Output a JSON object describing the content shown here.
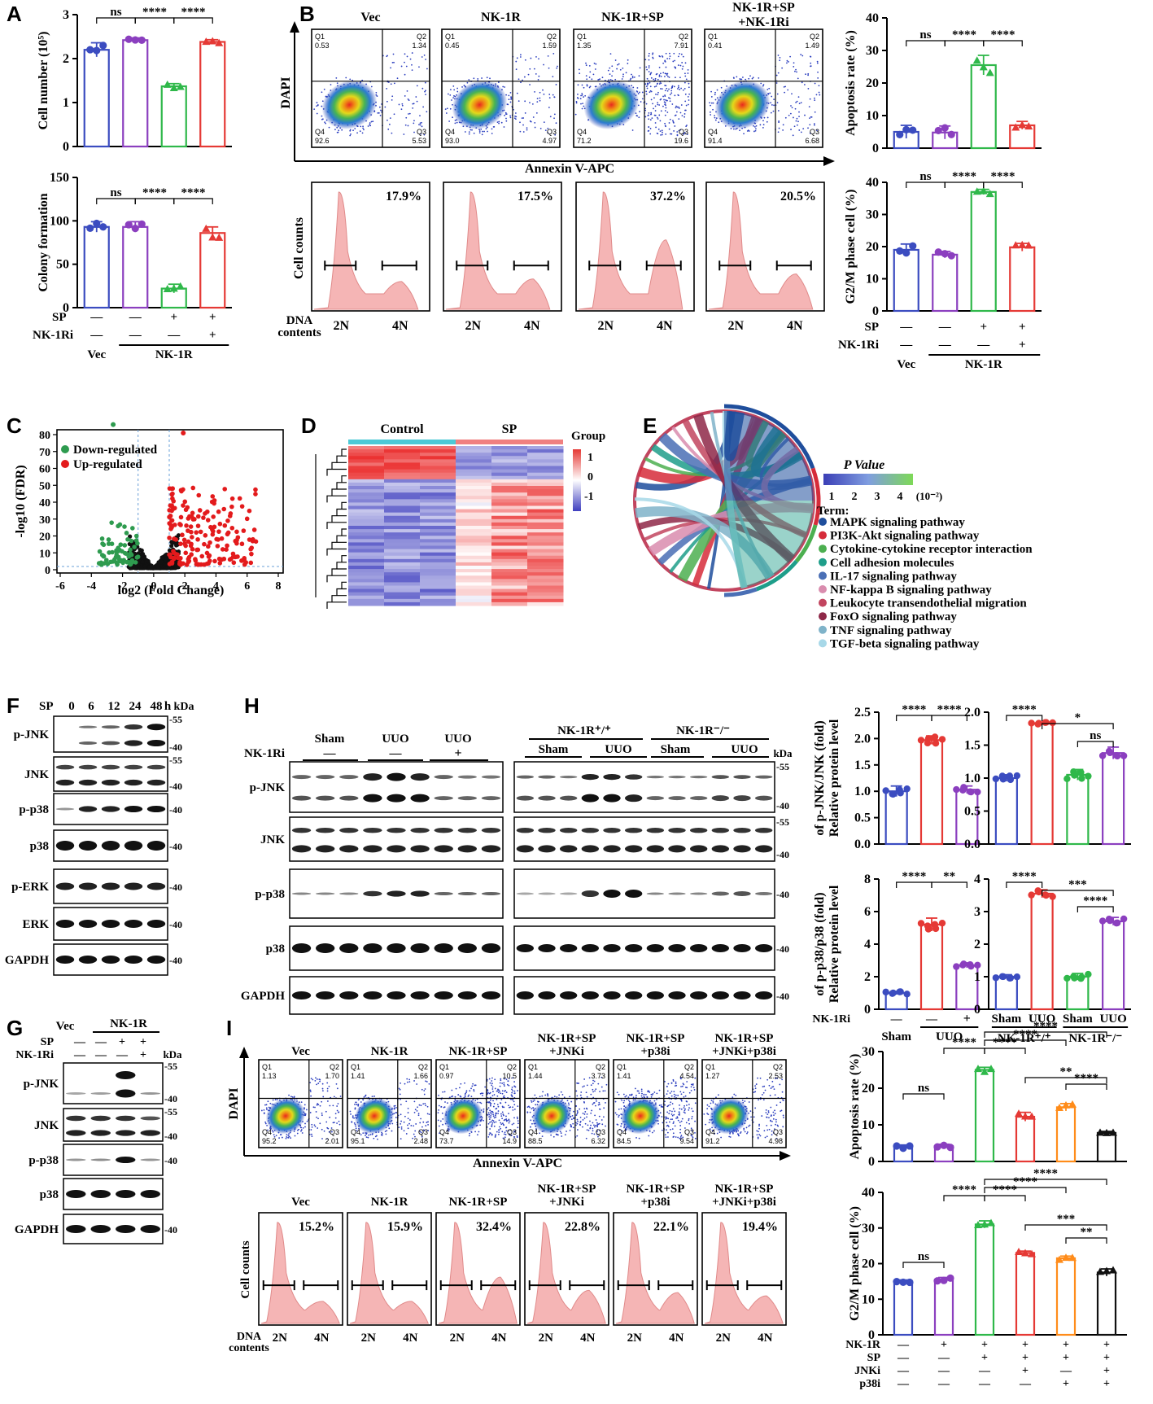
{
  "panels": {
    "A": "A",
    "B": "B",
    "C": "C",
    "D": "D",
    "E": "E",
    "F": "F",
    "G": "G",
    "H": "H",
    "I": "I"
  },
  "colors": {
    "vec": "#3b4cc0",
    "nk1r": "#8b3fbf",
    "sp": "#2fb84a",
    "nk1ri": "#e53935",
    "jnki": "#ff8c1a",
    "p38i": "#111111"
  },
  "panelA": {
    "cell_number": {
      "ylabel": "Cell number (10⁵)",
      "yticks": [
        "0",
        "1",
        "2",
        "3"
      ],
      "sig": [
        "ns",
        "****",
        "****"
      ]
    },
    "colony": {
      "ylabel": "Colony formation",
      "yticks": [
        "0",
        "50",
        "100",
        "150"
      ],
      "sig": [
        "ns",
        "****",
        "****"
      ]
    },
    "factors": {
      "sp": "SP",
      "nk1ri": "NK-1Ri",
      "sp_vals": [
        "—",
        "—",
        "+",
        "+"
      ],
      "nk1ri_vals": [
        "—",
        "—",
        "—",
        "+"
      ],
      "vec": "Vec",
      "nk1r": "NK-1R"
    }
  },
  "panelB": {
    "flow_titles": [
      "Vec",
      "NK-1R",
      "NK-1R+SP",
      "NK-1R+SP\n+NK-1Ri"
    ],
    "flow_title_l1": [
      "Vec",
      "NK-1R",
      "NK-1R+SP",
      "NK-1R+SP"
    ],
    "flow_title_l2": [
      "",
      "",
      "",
      "+NK-1Ri"
    ],
    "quads": [
      {
        "q1": "Q1",
        "q1v": "0.53",
        "q2": "Q2",
        "q2v": "1.34",
        "q3": "Q3",
        "q3v": "5.53",
        "q4": "Q4",
        "q4v": "92.6"
      },
      {
        "q1": "Q1",
        "q1v": "0.45",
        "q2": "Q2",
        "q2v": "1.59",
        "q3": "Q3",
        "q3v": "4.97",
        "q4": "Q4",
        "q4v": "93.0"
      },
      {
        "q1": "Q1",
        "q1v": "1.35",
        "q2": "Q2",
        "q2v": "7.91",
        "q3": "Q3",
        "q3v": "19.6",
        "q4": "Q4",
        "q4v": "71.2"
      },
      {
        "q1": "Q1",
        "q1v": "0.41",
        "q2": "Q2",
        "q2v": "1.49",
        "q3": "Q3",
        "q3v": "6.68",
        "q4": "Q4",
        "q4v": "91.4"
      }
    ],
    "dapi": "DAPI",
    "annexin": "Annexin V-APC",
    "hist_pct": [
      "17.9%",
      "17.5%",
      "37.2%",
      "20.5%"
    ],
    "cell_counts": "Cell counts",
    "dna": "DNA",
    "contents": "contents",
    "n2": "2N",
    "n4": "4N",
    "apoptosis": {
      "ylabel": "Apoptosis rate (%)",
      "yticks": [
        "0",
        "10",
        "20",
        "30",
        "40"
      ],
      "sig": [
        "ns",
        "****",
        "****"
      ]
    },
    "g2m": {
      "ylabel": "G2/M phase cell (%)",
      "yticks": [
        "0",
        "10",
        "20",
        "30",
        "40"
      ],
      "sig": [
        "ns",
        "****",
        "****"
      ]
    }
  },
  "panelC": {
    "ylabel": "-log10 (FDR)",
    "xlabel": "log2 (Fold Change)",
    "xticks": [
      "-6",
      "-4",
      "-2",
      "0",
      "2",
      "4",
      "6",
      "8"
    ],
    "yticks": [
      "0",
      "10",
      "20",
      "30",
      "40",
      "50",
      "60",
      "70",
      "80"
    ],
    "legend_down": "Down-regulated",
    "legend_up": "Up-regulated"
  },
  "panelD": {
    "control": "Control",
    "sp": "SP",
    "group": "Group",
    "scale": [
      "1",
      "0",
      "-1"
    ]
  },
  "panelE": {
    "pvalue": "P Value",
    "scale": [
      "1",
      "2",
      "3",
      "4"
    ],
    "unit": "(10⁻²)",
    "term": "Term:",
    "terms": [
      {
        "label": "MAPK signaling pathway",
        "color": "#1f4e9c"
      },
      {
        "label": "PI3K-Akt signaling pathway",
        "color": "#d62c3a"
      },
      {
        "label": "Cytokine-cytokine receptor interaction",
        "color": "#4caf50"
      },
      {
        "label": "Cell adhesion molecules",
        "color": "#1e9e8a"
      },
      {
        "label": "IL-17 signaling pathway",
        "color": "#4a6fb5"
      },
      {
        "label": "NF-kappa B signaling pathway",
        "color": "#d98cae"
      },
      {
        "label": "Leukocyte transendothelial migration",
        "color": "#c2455f"
      },
      {
        "label": "FoxO signaling pathway",
        "color": "#8e2848"
      },
      {
        "label": "TNF signaling pathway",
        "color": "#7fb3c9"
      },
      {
        "label": "TGF-beta signaling pathway",
        "color": "#a7d8e8"
      }
    ]
  },
  "panelF": {
    "sp": "SP",
    "times": [
      "0",
      "6",
      "12",
      "24",
      "48"
    ],
    "h": "h",
    "kda": "kDa",
    "rows": [
      {
        "label": "p-JNK",
        "m": [
          "55",
          "40"
        ]
      },
      {
        "label": "JNK",
        "m": [
          "55",
          "40"
        ]
      },
      {
        "label": "p-p38",
        "m": [
          "40"
        ]
      },
      {
        "label": "p38",
        "m": [
          "40"
        ]
      },
      {
        "label": "p-ERK",
        "m": [
          "40"
        ]
      },
      {
        "label": "ERK",
        "m": [
          "40"
        ]
      },
      {
        "label": "GAPDH",
        "m": [
          "40"
        ]
      }
    ]
  },
  "panelG": {
    "vec": "Vec",
    "nk1r": "NK-1R",
    "sp": "SP",
    "nk1ri": "NK-1Ri",
    "kda": "kDa",
    "sp_vals": [
      "—",
      "—",
      "+",
      "+"
    ],
    "nk1ri_vals": [
      "—",
      "—",
      "—",
      "+"
    ],
    "rows": [
      {
        "label": "p-JNK",
        "m": [
          "55",
          "40"
        ]
      },
      {
        "label": "JNK",
        "m": [
          "55",
          "40"
        ]
      },
      {
        "label": "p-p38",
        "m": [
          "40"
        ]
      },
      {
        "label": "p38",
        "m": []
      },
      {
        "label": "GAPDH",
        "m": [
          "40"
        ]
      }
    ]
  },
  "panelH": {
    "nk1ri": "NK-1Ri",
    "sham": "Sham",
    "uuo": "UUO",
    "minus": "—",
    "plus": "+",
    "nk1r_wt": "NK-1R⁺/⁺",
    "nk1r_ko": "NK-1R⁻/⁻",
    "kda": "kDa",
    "rows": [
      {
        "label": "p-JNK",
        "m": [
          "55",
          "40"
        ]
      },
      {
        "label": "JNK",
        "m": [
          "55",
          "40"
        ]
      },
      {
        "label": "p-p38",
        "m": [
          "40"
        ]
      },
      {
        "label": "p38",
        "m": [
          "40"
        ]
      },
      {
        "label": "GAPDH",
        "m": [
          "40"
        ]
      }
    ],
    "q1": {
      "ylabel1": "Relative protein level",
      "ylabel2": "of p-JNK/JNK (fold)",
      "yticks": [
        "0.0",
        "0.5",
        "1.0",
        "1.5",
        "2.0",
        "2.5"
      ],
      "sig": [
        "****",
        "****"
      ]
    },
    "q2": {
      "yticks": [
        "0.0",
        "0.5",
        "1.0",
        "1.5",
        "2.0"
      ],
      "sig": [
        "****",
        "*",
        "ns"
      ]
    },
    "q3": {
      "ylabel1": "Relative protein level",
      "ylabel2": "of p-p38/p38 (fold)",
      "yticks": [
        "0",
        "2",
        "4",
        "6",
        "8"
      ],
      "sig": [
        "****",
        "**"
      ]
    },
    "q4": {
      "yticks": [
        "0",
        "1",
        "2",
        "3",
        "4"
      ],
      "sig": [
        "****",
        "***",
        "****"
      ]
    },
    "xlab": {
      "nk1ri": "NK-1Ri",
      "minus1": "—",
      "minus2": "—",
      "plus": "+",
      "sham": "Sham",
      "uuo": "UUO"
    },
    "xlab2": [
      "Sham",
      "UUO",
      "Sham",
      "UUO"
    ]
  },
  "panelI": {
    "titles_l1": [
      "Vec",
      "NK-1R",
      "NK-1R+SP",
      "NK-1R+SP",
      "NK-1R+SP",
      "NK-1R+SP"
    ],
    "titles_l2": [
      "",
      "",
      "",
      "+JNKi",
      "+p38i",
      "+JNKi+p38i"
    ],
    "quads": [
      {
        "q1v": "1.13",
        "q2v": "1.70",
        "q3v": "2.01",
        "q4v": "95.2"
      },
      {
        "q1v": "1.41",
        "q2v": "1.66",
        "q3v": "2.48",
        "q4v": "95.1"
      },
      {
        "q1v": "0.97",
        "q2v": "10.5",
        "q3v": "14.9",
        "q4v": "73.7"
      },
      {
        "q1v": "1.44",
        "q2v": "3.73",
        "q3v": "6.32",
        "q4v": "88.5"
      },
      {
        "q1v": "1.41",
        "q2v": "4.54",
        "q3v": "9.54",
        "q4v": "84.5"
      },
      {
        "q1v": "1.27",
        "q2v": "2.53",
        "q3v": "4.98",
        "q4v": "91.2"
      }
    ],
    "hist_pct": [
      "15.2%",
      "15.9%",
      "32.4%",
      "22.8%",
      "22.1%",
      "19.4%"
    ],
    "apoptosis": {
      "ylabel": "Apoptosis rate (%)",
      "yticks": [
        "0",
        "10",
        "20",
        "30"
      ],
      "sig": [
        "ns",
        "****",
        "****",
        "****",
        "****",
        "**",
        "****"
      ]
    },
    "g2m": {
      "ylabel": "G2/M phase cell (%)",
      "yticks": [
        "0",
        "10",
        "20",
        "30",
        "40"
      ],
      "sig": [
        "ns",
        "****",
        "****",
        "****",
        "****",
        "***",
        "**"
      ]
    },
    "factors": {
      "nk1r": "NK-1R",
      "sp": "SP",
      "jnki": "JNKi",
      "p38i": "p38i",
      "nk1r_v": [
        "—",
        "+",
        "+",
        "+",
        "+",
        "+"
      ],
      "sp_v": [
        "—",
        "—",
        "+",
        "+",
        "+",
        "+"
      ],
      "jnki_v": [
        "—",
        "—",
        "—",
        "+",
        "—",
        "+"
      ],
      "p38i_v": [
        "—",
        "—",
        "—",
        "—",
        "+",
        "+"
      ]
    }
  },
  "chart_data": [
    {
      "type": "bar",
      "title": "A top",
      "ylabel": "Cell number (10⁵)",
      "categories": [
        "Vec",
        "NK-1R",
        "NK-1R+SP",
        "NK-1R+SP+NK-1Ri"
      ],
      "values": [
        2.2,
        2.42,
        1.37,
        2.38
      ],
      "ylim": [
        0,
        3
      ]
    },
    {
      "type": "bar",
      "title": "A bottom",
      "ylabel": "Colony formation",
      "categories": [
        "Vec",
        "NK-1R",
        "NK-1R+SP",
        "NK-1R+SP+NK-1Ri"
      ],
      "values": [
        93,
        93,
        22,
        86
      ],
      "ylim": [
        0,
        150
      ]
    },
    {
      "type": "bar",
      "title": "B apoptosis",
      "ylabel": "Apoptosis rate (%)",
      "categories": [
        "Vec",
        "NK-1R",
        "NK-1R+SP",
        "NK-1R+SP+NK-1Ri"
      ],
      "values": [
        5,
        4.8,
        25.5,
        7
      ],
      "ylim": [
        0,
        40
      ]
    },
    {
      "type": "bar",
      "title": "B G2/M",
      "ylabel": "G2/M phase cell (%)",
      "categories": [
        "Vec",
        "NK-1R",
        "NK-1R+SP",
        "NK-1R+SP+NK-1Ri"
      ],
      "values": [
        19,
        17.5,
        37,
        19.8
      ],
      "ylim": [
        0,
        40
      ]
    },
    {
      "type": "bar",
      "title": "H p-JNK/JNK (1)",
      "categories": [
        "Sham",
        "UUO",
        "UUO+NK-1Ri"
      ],
      "values": [
        1.0,
        1.97,
        1.03
      ],
      "ylim": [
        0,
        2.5
      ]
    },
    {
      "type": "bar",
      "title": "H p-JNK/JNK (2)",
      "categories": [
        "Sham WT",
        "UUO WT",
        "Sham KO",
        "UUO KO"
      ],
      "values": [
        1.0,
        1.83,
        1.05,
        1.38
      ],
      "ylim": [
        0,
        2.0
      ]
    },
    {
      "type": "bar",
      "title": "H p-p38/p38 (1)",
      "categories": [
        "Sham",
        "UUO",
        "UUO+NK-1Ri"
      ],
      "values": [
        1.0,
        5.2,
        2.7
      ],
      "ylim": [
        0,
        8
      ]
    },
    {
      "type": "bar",
      "title": "H p-p38/p38 (2)",
      "categories": [
        "Sham WT",
        "UUO WT",
        "Sham KO",
        "UUO KO"
      ],
      "values": [
        1.0,
        3.55,
        1.0,
        2.7
      ],
      "ylim": [
        0,
        4
      ]
    },
    {
      "type": "bar",
      "title": "I apoptosis",
      "ylabel": "Apoptosis rate (%)",
      "categories": [
        "Vec",
        "NK-1R",
        "NK-1R+SP",
        "+JNKi",
        "+p38i",
        "+JNKi+p38i"
      ],
      "values": [
        4,
        4.2,
        25,
        12.2,
        14.8,
        7.8
      ],
      "ylim": [
        0,
        30
      ]
    },
    {
      "type": "bar",
      "title": "I G2/M",
      "ylabel": "G2/M phase cell (%)",
      "categories": [
        "Vec",
        "NK-1R",
        "NK-1R+SP",
        "+JNKi",
        "+p38i",
        "+JNKi+p38i"
      ],
      "values": [
        15,
        15.5,
        31,
        23,
        21.5,
        17.5
      ],
      "ylim": [
        0,
        40
      ]
    }
  ]
}
